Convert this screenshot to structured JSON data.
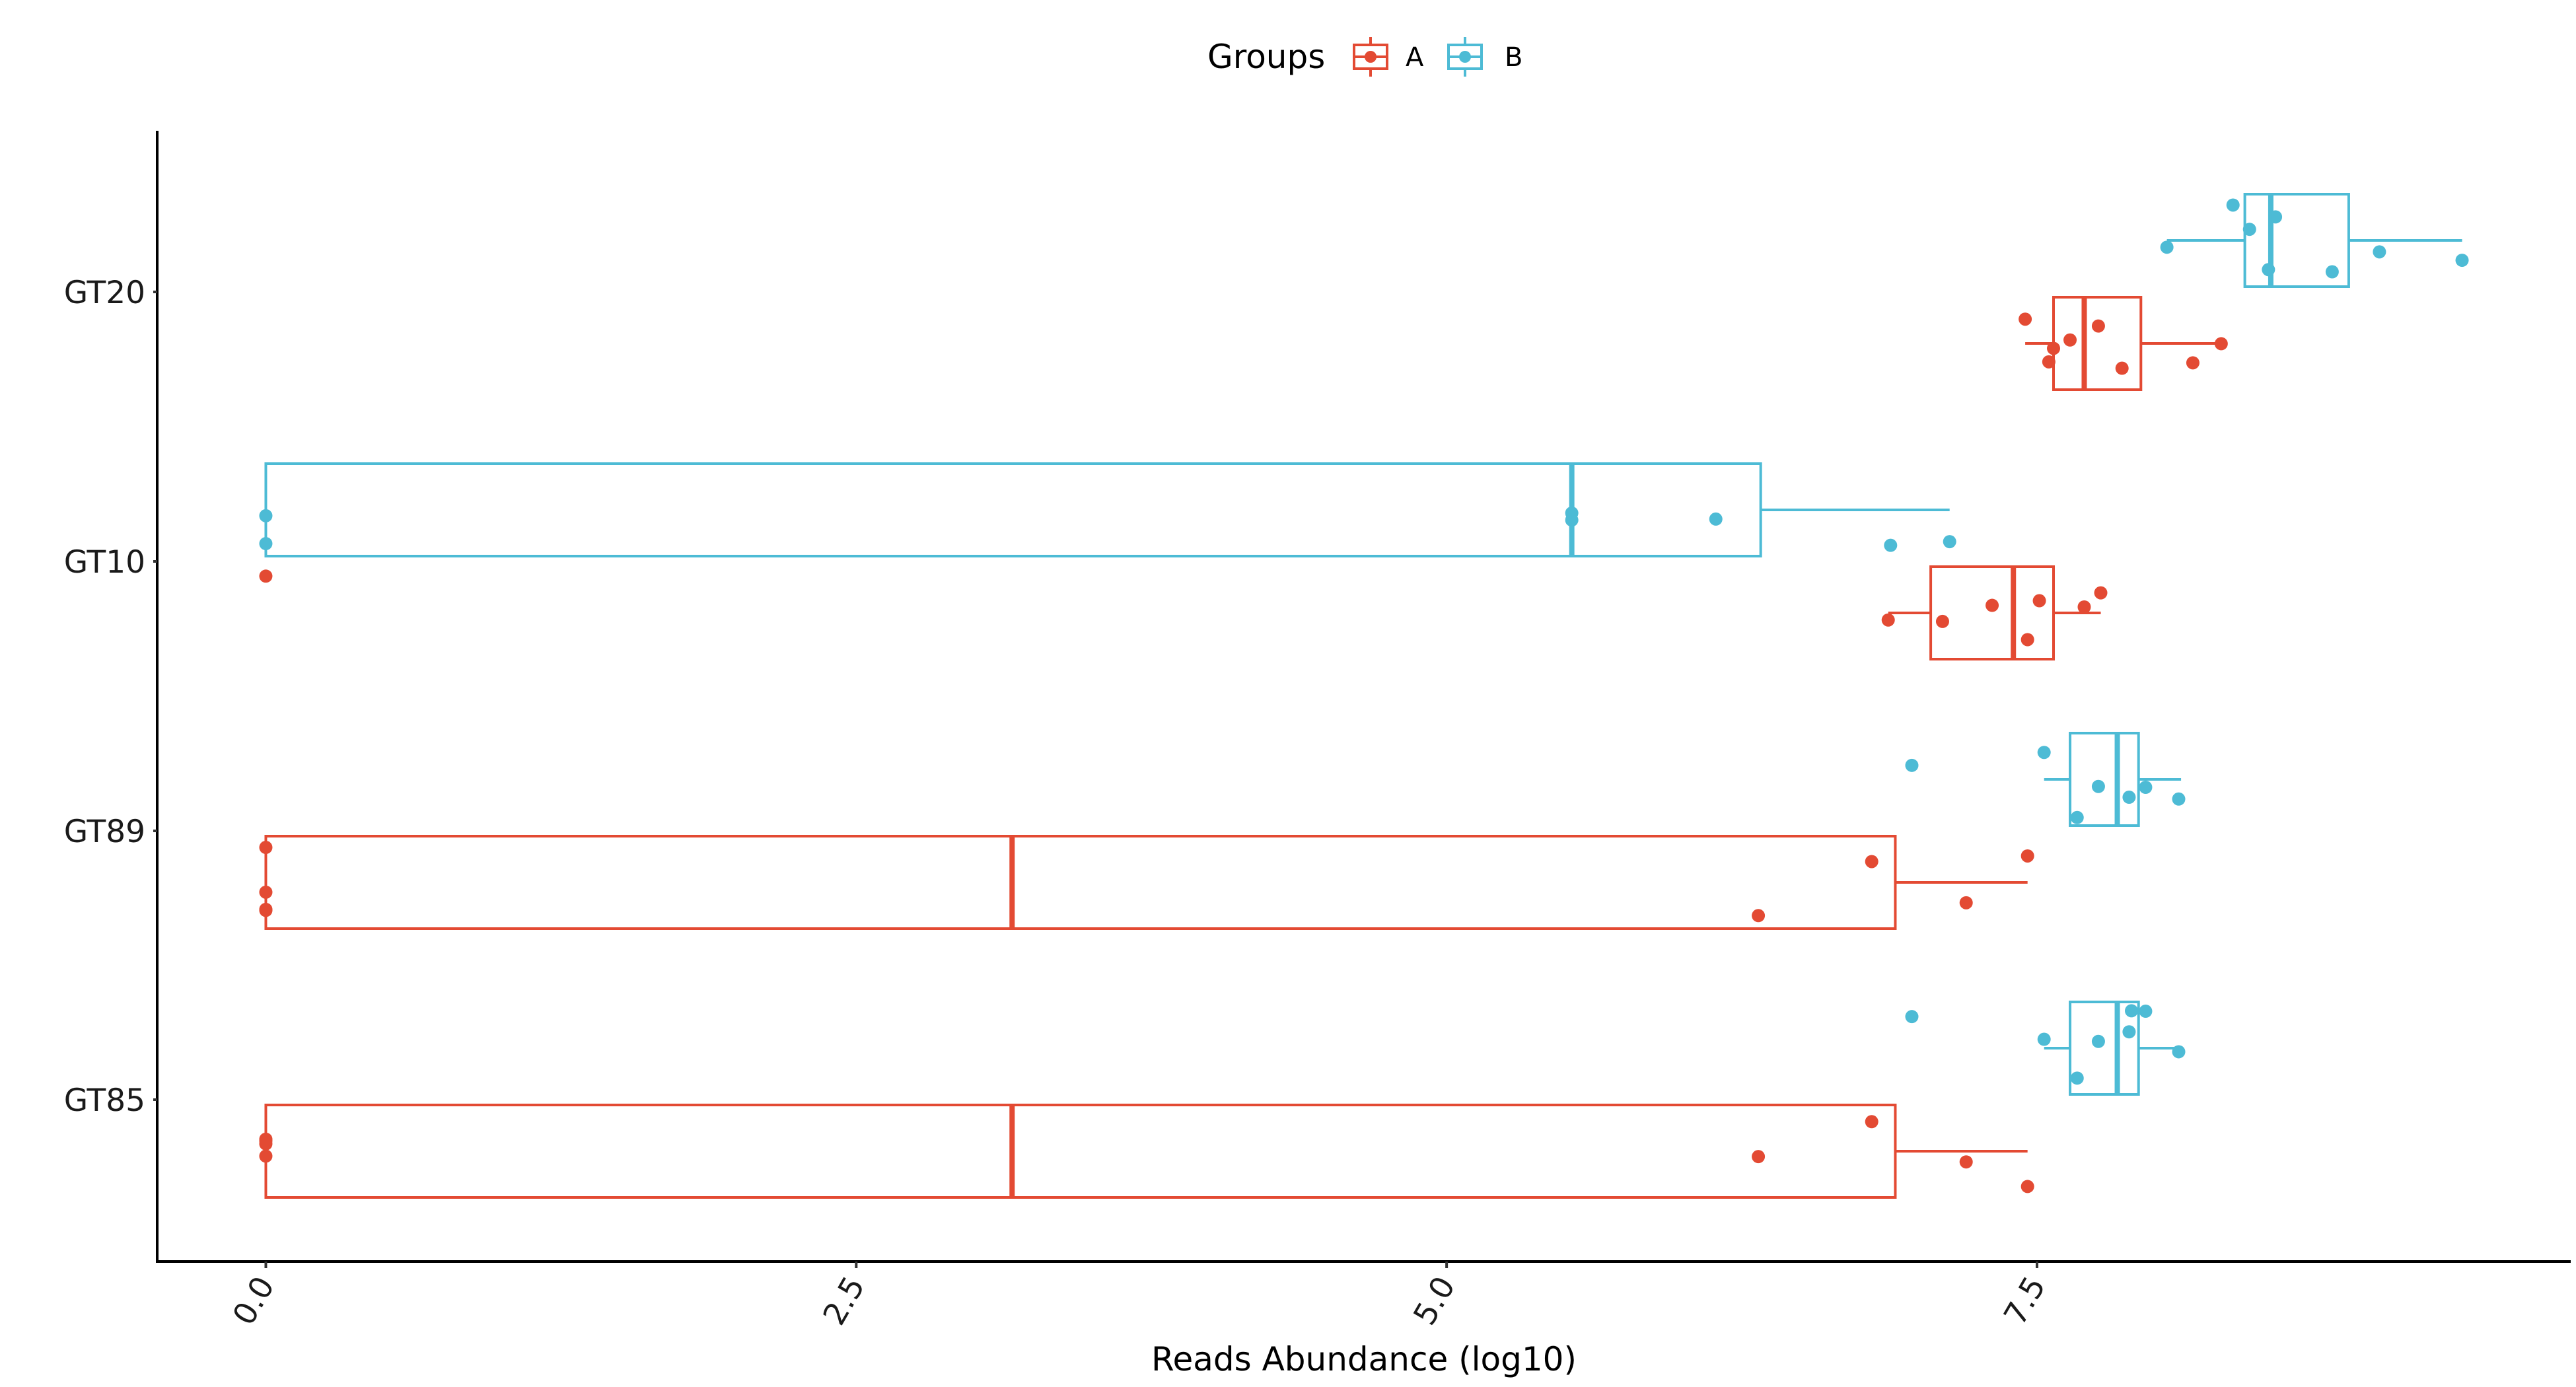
{
  "chart_data": {
    "type": "boxplot",
    "orientation": "horizontal",
    "xlabel": "Reads Abundance (log10)",
    "ylabel": "",
    "xlim": [
      -0.46,
      9.76
    ],
    "x_ticks": [
      0,
      2.5,
      5,
      7.5
    ],
    "x_tick_labels": [
      "0.0",
      "2.5",
      "5.0",
      "7.5"
    ],
    "categories": [
      "GT20",
      "GT10",
      "GT89",
      "GT85"
    ],
    "legend": {
      "title": "Groups",
      "position": "top"
    },
    "grid": false,
    "series": [
      {
        "name": "A",
        "color": "#E34A33",
        "boxes": [
          {
            "category": "GT20",
            "min": 7.45,
            "q1": 7.57,
            "median": 7.7,
            "q3": 7.94,
            "max": 8.28
          },
          {
            "category": "GT10",
            "min": 6.87,
            "q1": 7.05,
            "median": 7.4,
            "q3": 7.57,
            "max": 7.77
          },
          {
            "category": "GT89",
            "min": 0.0,
            "q1": 0.0,
            "median": 3.16,
            "q3": 6.9,
            "max": 7.46
          },
          {
            "category": "GT85",
            "min": 0.0,
            "q1": 0.0,
            "median": 3.16,
            "q3": 6.9,
            "max": 7.46
          }
        ],
        "points": [
          {
            "category": "GT20",
            "values": [
              7.45,
              7.55,
              7.57,
              7.64,
              7.76,
              7.86,
              8.16,
              8.28
            ]
          },
          {
            "category": "GT10",
            "values": [
              0.0,
              6.87,
              7.1,
              7.31,
              7.46,
              7.51,
              7.7,
              7.77
            ]
          },
          {
            "category": "GT89",
            "values": [
              0.0,
              0.0,
              0.0,
              0.0,
              6.32,
              6.8,
              7.2,
              7.46
            ]
          },
          {
            "category": "GT85",
            "values": [
              0.0,
              0.0,
              0.0,
              0.0,
              6.32,
              6.8,
              7.2,
              7.46
            ]
          }
        ]
      },
      {
        "name": "B",
        "color": "#4DBBD5",
        "boxes": [
          {
            "category": "GT20",
            "min": 8.05,
            "q1": 8.38,
            "median": 8.49,
            "q3": 8.82,
            "max": 9.3
          },
          {
            "category": "GT10",
            "min": 0.0,
            "q1": 0.0,
            "median": 5.53,
            "q3": 6.33,
            "max": 7.13
          },
          {
            "category": "GT89",
            "min": 7.53,
            "q1": 7.64,
            "median": 7.84,
            "q3": 7.93,
            "max": 8.11
          },
          {
            "category": "GT85",
            "min": 7.53,
            "q1": 7.64,
            "median": 7.84,
            "q3": 7.93,
            "max": 8.11
          }
        ],
        "points": [
          {
            "category": "GT20",
            "values": [
              8.05,
              8.33,
              8.4,
              8.48,
              8.51,
              8.75,
              8.95,
              9.3
            ]
          },
          {
            "category": "GT10",
            "values": [
              0.0,
              0.0,
              5.53,
              5.53,
              6.14,
              6.88,
              7.13
            ]
          },
          {
            "category": "GT89",
            "values": [
              6.97,
              7.53,
              7.67,
              7.76,
              7.89,
              7.96,
              8.1
            ]
          },
          {
            "category": "GT85",
            "values": [
              6.97,
              7.53,
              7.67,
              7.76,
              7.89,
              7.9,
              7.96,
              8.1
            ]
          }
        ]
      }
    ]
  }
}
